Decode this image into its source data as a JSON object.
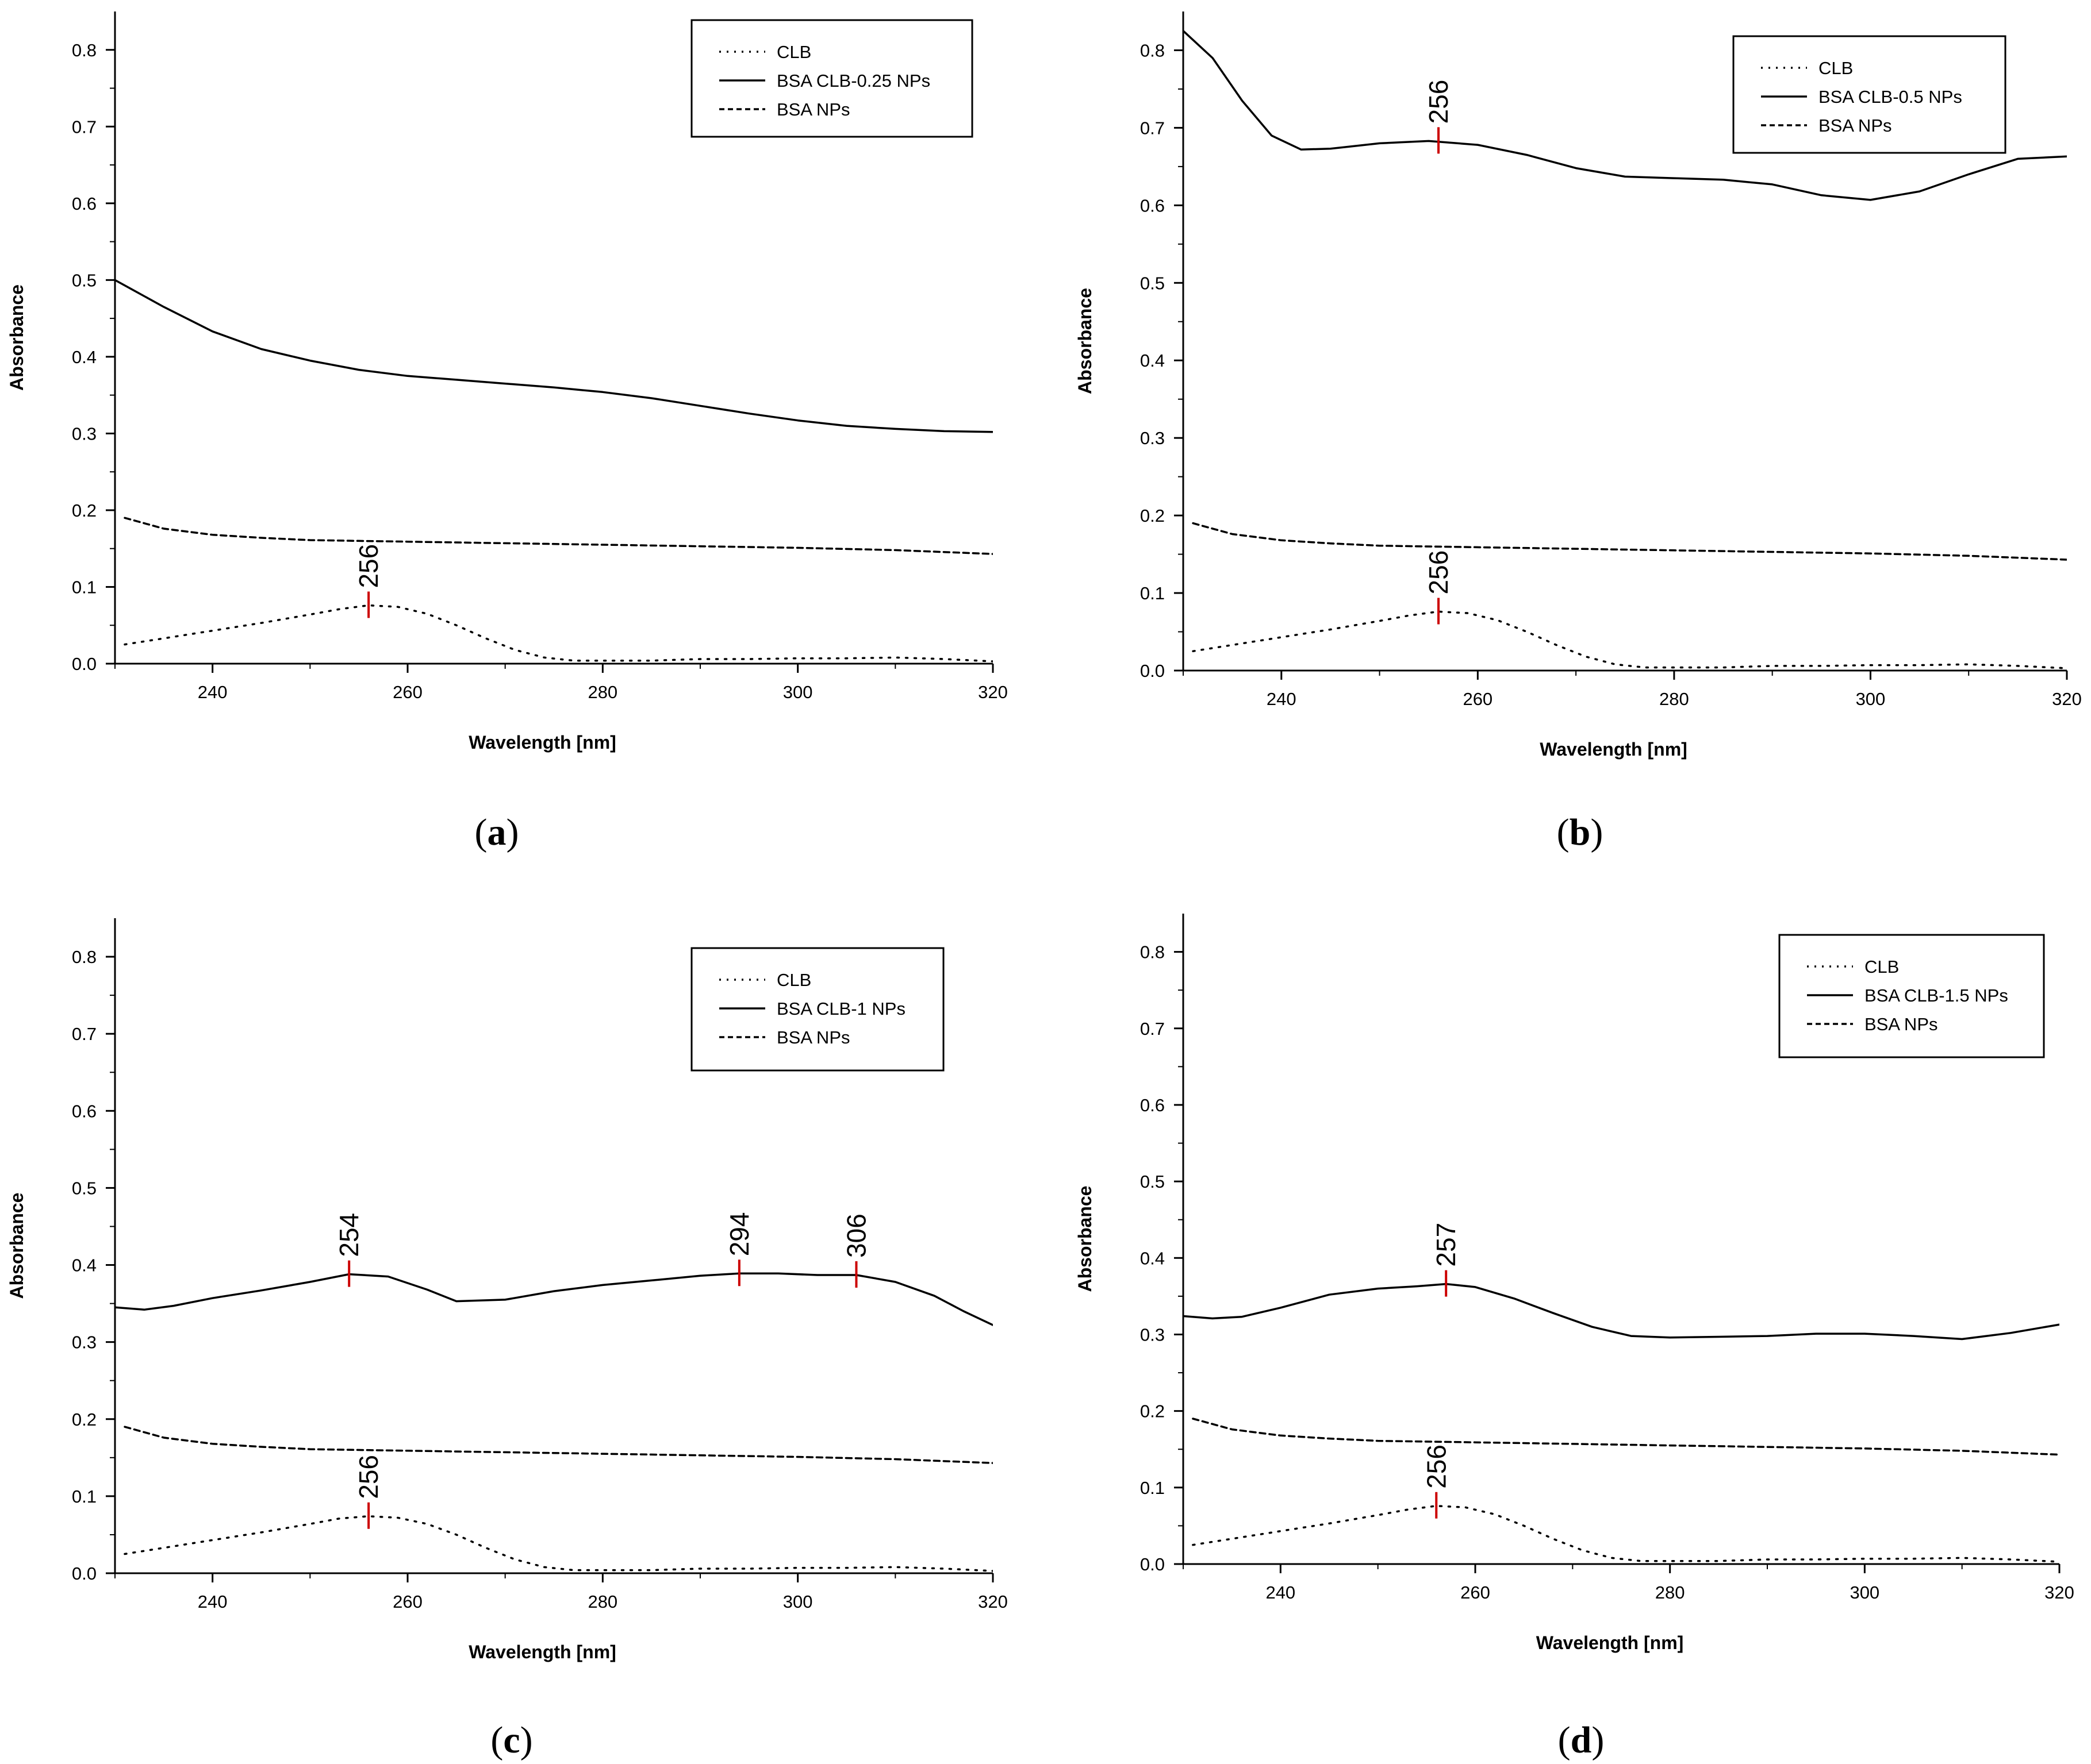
{
  "figure": {
    "panels": [
      {
        "id": "a",
        "caption_letter": "a",
        "caption_open": "(",
        "caption_close": ")"
      },
      {
        "id": "b",
        "caption_letter": "b",
        "caption_open": "(",
        "caption_close": ")"
      },
      {
        "id": "c",
        "caption_letter": "c",
        "caption_open": "(",
        "caption_close": ")"
      },
      {
        "id": "d",
        "caption_letter": "d",
        "caption_open": "(",
        "caption_close": ")"
      }
    ]
  },
  "chart_data": [
    {
      "type": "line",
      "panel": "a",
      "xlabel": "Wavelength [nm]",
      "ylabel": "Absorbance",
      "xlim": [
        230,
        320
      ],
      "ylim": [
        0.0,
        0.85
      ],
      "xticks": [
        240,
        260,
        280,
        300,
        320
      ],
      "yticks": [
        0.0,
        0.1,
        0.2,
        0.3,
        0.4,
        0.5,
        0.6,
        0.7,
        0.8
      ],
      "ytick_labels": [
        "0.0",
        "0.1",
        "0.2",
        "0.3",
        "0.4",
        "0.5",
        "0.6",
        "0.7",
        "0.8"
      ],
      "legend": {
        "position": "top-right",
        "entries": [
          "CLB",
          "BSA CLB-0.25 NPs",
          "BSA NPs"
        ]
      },
      "series": [
        {
          "name": "CLB",
          "style": "dotted",
          "x": [
            231,
            236,
            240,
            245,
            250,
            253,
            256,
            259,
            262,
            265,
            268,
            271,
            274,
            277,
            280,
            285,
            290,
            295,
            300,
            305,
            310,
            315,
            320
          ],
          "y": [
            0.025,
            0.035,
            0.043,
            0.053,
            0.064,
            0.071,
            0.076,
            0.074,
            0.065,
            0.05,
            0.033,
            0.018,
            0.008,
            0.004,
            0.004,
            0.004,
            0.006,
            0.006,
            0.007,
            0.007,
            0.008,
            0.006,
            0.003
          ]
        },
        {
          "name": "BSA CLB-0.25 NPs",
          "style": "solid",
          "x": [
            230,
            235,
            240,
            245,
            250,
            255,
            260,
            265,
            270,
            275,
            280,
            285,
            290,
            295,
            300,
            305,
            310,
            315,
            320
          ],
          "y": [
            0.5,
            0.465,
            0.433,
            0.41,
            0.395,
            0.383,
            0.375,
            0.37,
            0.365,
            0.36,
            0.354,
            0.346,
            0.336,
            0.326,
            0.317,
            0.31,
            0.306,
            0.303,
            0.302
          ]
        },
        {
          "name": "BSA NPs",
          "style": "dashed",
          "x": [
            231,
            235,
            240,
            245,
            250,
            260,
            270,
            280,
            290,
            300,
            310,
            320
          ],
          "y": [
            0.19,
            0.176,
            0.168,
            0.164,
            0.161,
            0.159,
            0.157,
            0.155,
            0.153,
            0.151,
            0.148,
            0.143
          ]
        }
      ],
      "peak_markers": [
        {
          "x": 256,
          "y": 0.076,
          "label": "256"
        }
      ]
    },
    {
      "type": "line",
      "panel": "b",
      "xlabel": "Wavelength [nm]",
      "ylabel": "Absorbance",
      "xlim": [
        230,
        320
      ],
      "ylim": [
        0.0,
        0.85
      ],
      "xticks": [
        240,
        260,
        280,
        300,
        320
      ],
      "yticks": [
        0.0,
        0.1,
        0.2,
        0.3,
        0.4,
        0.5,
        0.6,
        0.7,
        0.8
      ],
      "ytick_labels": [
        "0.0",
        "0.1",
        "0.2",
        "0.3",
        "0.4",
        "0.5",
        "0.6",
        "0.7",
        "0.8"
      ],
      "legend": {
        "position": "top-right",
        "entries": [
          "CLB",
          "BSA CLB-0.5 NPs",
          "BSA NPs"
        ]
      },
      "series": [
        {
          "name": "CLB",
          "style": "dotted",
          "x": [
            231,
            236,
            240,
            245,
            250,
            253,
            256,
            259,
            262,
            265,
            268,
            271,
            274,
            277,
            280,
            285,
            290,
            295,
            300,
            305,
            310,
            315,
            320
          ],
          "y": [
            0.025,
            0.035,
            0.043,
            0.053,
            0.064,
            0.071,
            0.076,
            0.074,
            0.065,
            0.05,
            0.033,
            0.018,
            0.008,
            0.004,
            0.004,
            0.004,
            0.006,
            0.006,
            0.007,
            0.007,
            0.008,
            0.006,
            0.003
          ]
        },
        {
          "name": "BSA CLB-0.5 NPs",
          "style": "solid",
          "x": [
            230,
            233,
            236,
            239,
            242,
            245,
            250,
            255,
            260,
            265,
            270,
            275,
            280,
            285,
            290,
            295,
            300,
            305,
            310,
            315,
            320
          ],
          "y": [
            0.825,
            0.79,
            0.735,
            0.69,
            0.672,
            0.673,
            0.68,
            0.683,
            0.678,
            0.665,
            0.648,
            0.637,
            0.635,
            0.633,
            0.627,
            0.613,
            0.607,
            0.618,
            0.64,
            0.66,
            0.663
          ]
        },
        {
          "name": "BSA NPs",
          "style": "dashed",
          "x": [
            231,
            235,
            240,
            245,
            250,
            260,
            270,
            280,
            290,
            300,
            310,
            320
          ],
          "y": [
            0.19,
            0.176,
            0.168,
            0.164,
            0.161,
            0.159,
            0.157,
            0.155,
            0.153,
            0.151,
            0.148,
            0.143
          ]
        }
      ],
      "peak_markers": [
        {
          "x": 256,
          "y": 0.683,
          "label": "256"
        },
        {
          "x": 256,
          "y": 0.076,
          "label": "256"
        }
      ]
    },
    {
      "type": "line",
      "panel": "c",
      "xlabel": "Wavelength [nm]",
      "ylabel": "Absorbance",
      "xlim": [
        230,
        320
      ],
      "ylim": [
        0.0,
        0.85
      ],
      "xticks": [
        240,
        260,
        280,
        300,
        320
      ],
      "yticks": [
        0.0,
        0.1,
        0.2,
        0.3,
        0.4,
        0.5,
        0.6,
        0.7,
        0.8
      ],
      "ytick_labels": [
        "0.0",
        "0.1",
        "0.2",
        "0.3",
        "0.4",
        "0.5",
        "0.6",
        "0.7",
        "0.8"
      ],
      "legend": {
        "position": "top-right",
        "entries": [
          "CLB",
          "BSA CLB-1 NPs",
          "BSA NPs"
        ]
      },
      "series": [
        {
          "name": "CLB",
          "style": "dotted",
          "x": [
            231,
            236,
            240,
            245,
            250,
            253,
            256,
            259,
            262,
            265,
            268,
            271,
            274,
            277,
            280,
            285,
            290,
            295,
            300,
            305,
            310,
            315,
            320
          ],
          "y": [
            0.025,
            0.035,
            0.043,
            0.053,
            0.064,
            0.071,
            0.074,
            0.072,
            0.064,
            0.05,
            0.033,
            0.018,
            0.008,
            0.004,
            0.004,
            0.004,
            0.006,
            0.006,
            0.007,
            0.007,
            0.008,
            0.006,
            0.003
          ]
        },
        {
          "name": "BSA CLB-1 NPs",
          "style": "solid",
          "x": [
            230,
            233,
            236,
            240,
            245,
            250,
            254,
            258,
            262,
            265,
            270,
            275,
            280,
            285,
            290,
            294,
            298,
            302,
            306,
            310,
            314,
            317,
            320
          ],
          "y": [
            0.345,
            0.342,
            0.347,
            0.357,
            0.367,
            0.378,
            0.388,
            0.385,
            0.368,
            0.353,
            0.355,
            0.366,
            0.374,
            0.38,
            0.386,
            0.389,
            0.389,
            0.387,
            0.387,
            0.378,
            0.36,
            0.34,
            0.322
          ]
        },
        {
          "name": "BSA NPs",
          "style": "dashed",
          "x": [
            231,
            235,
            240,
            245,
            250,
            260,
            270,
            280,
            290,
            300,
            310,
            320
          ],
          "y": [
            0.19,
            0.176,
            0.168,
            0.164,
            0.161,
            0.159,
            0.157,
            0.155,
            0.153,
            0.151,
            0.148,
            0.143
          ]
        }
      ],
      "peak_markers": [
        {
          "x": 254,
          "y": 0.388,
          "label": "254"
        },
        {
          "x": 294,
          "y": 0.389,
          "label": "294"
        },
        {
          "x": 306,
          "y": 0.387,
          "label": "306"
        },
        {
          "x": 256,
          "y": 0.074,
          "label": "256"
        }
      ]
    },
    {
      "type": "line",
      "panel": "d",
      "xlabel": "Wavelength [nm]",
      "ylabel": "Absorbance",
      "xlim": [
        230,
        320
      ],
      "ylim": [
        0.0,
        0.85
      ],
      "xticks": [
        240,
        260,
        280,
        300,
        320
      ],
      "yticks": [
        0.0,
        0.1,
        0.2,
        0.3,
        0.4,
        0.5,
        0.6,
        0.7,
        0.8
      ],
      "ytick_labels": [
        "0.0",
        "0.1",
        "0.2",
        "0.3",
        "0.4",
        "0.5",
        "0.6",
        "0.7",
        "0.8"
      ],
      "legend": {
        "position": "top-right",
        "entries": [
          "CLB",
          "BSA CLB-1.5 NPs",
          "BSA NPs"
        ]
      },
      "series": [
        {
          "name": "CLB",
          "style": "dotted",
          "x": [
            231,
            236,
            240,
            245,
            250,
            253,
            256,
            259,
            262,
            265,
            268,
            271,
            274,
            277,
            280,
            285,
            290,
            295,
            300,
            305,
            310,
            315,
            320
          ],
          "y": [
            0.025,
            0.035,
            0.043,
            0.053,
            0.064,
            0.071,
            0.076,
            0.074,
            0.065,
            0.05,
            0.033,
            0.018,
            0.008,
            0.004,
            0.004,
            0.004,
            0.006,
            0.006,
            0.007,
            0.007,
            0.008,
            0.006,
            0.003
          ]
        },
        {
          "name": "BSA CLB-1.5 NPs",
          "style": "solid",
          "x": [
            230,
            233,
            236,
            240,
            245,
            250,
            254,
            257,
            260,
            264,
            268,
            272,
            276,
            280,
            285,
            290,
            295,
            300,
            305,
            310,
            315,
            320
          ],
          "y": [
            0.324,
            0.321,
            0.323,
            0.335,
            0.352,
            0.36,
            0.363,
            0.366,
            0.362,
            0.347,
            0.328,
            0.31,
            0.298,
            0.296,
            0.297,
            0.298,
            0.301,
            0.301,
            0.298,
            0.294,
            0.302,
            0.313
          ]
        },
        {
          "name": "BSA NPs",
          "style": "dashed",
          "x": [
            231,
            235,
            240,
            245,
            250,
            260,
            270,
            280,
            290,
            300,
            310,
            320
          ],
          "y": [
            0.19,
            0.176,
            0.168,
            0.164,
            0.161,
            0.159,
            0.157,
            0.155,
            0.153,
            0.151,
            0.148,
            0.143
          ]
        }
      ],
      "peak_markers": [
        {
          "x": 257,
          "y": 0.366,
          "label": "257"
        },
        {
          "x": 256,
          "y": 0.076,
          "label": "256"
        }
      ]
    }
  ]
}
